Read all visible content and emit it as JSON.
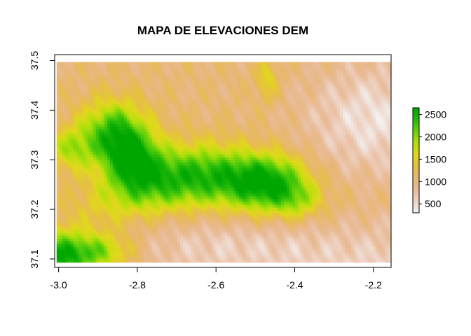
{
  "chart_data": {
    "type": "heatmap",
    "title": "MAPA DE ELEVACIONES DEM",
    "xlabel": "",
    "ylabel": "",
    "xlim": [
      -3.01,
      -2.155
    ],
    "ylim": [
      37.083,
      37.512
    ],
    "x_ticks": [
      {
        "value": -3.0,
        "label": "-3.0"
      },
      {
        "value": -2.8,
        "label": "-2.8"
      },
      {
        "value": -2.6,
        "label": "-2.6"
      },
      {
        "value": -2.4,
        "label": "-2.4"
      },
      {
        "value": -2.2,
        "label": "-2.2"
      }
    ],
    "y_ticks": [
      {
        "value": 37.1,
        "label": "37.1"
      },
      {
        "value": 37.2,
        "label": "37.2"
      },
      {
        "value": 37.3,
        "label": "37.3"
      },
      {
        "value": 37.4,
        "label": "37.4"
      },
      {
        "value": 37.5,
        "label": "37.5"
      }
    ],
    "raster_extent": {
      "xmin": -3.005,
      "xmax": -2.155,
      "ymin": 37.093,
      "ymax": 37.497
    },
    "legend": {
      "placement": "right",
      "min": 300,
      "max": 2650,
      "ticks": [
        {
          "value": 500,
          "label": "500"
        },
        {
          "value": 1000,
          "label": "1000"
        },
        {
          "value": 1500,
          "label": "1500"
        },
        {
          "value": 2000,
          "label": "2000"
        },
        {
          "value": 2500,
          "label": "2500"
        }
      ],
      "colors": [
        "#f2f2f2",
        "#eed3c5",
        "#e9bb97",
        "#e8b772",
        "#e6c044",
        "#e0d81b",
        "#b3df0b",
        "#6ad20a",
        "#26bb0a",
        "#00a600"
      ]
    }
  }
}
